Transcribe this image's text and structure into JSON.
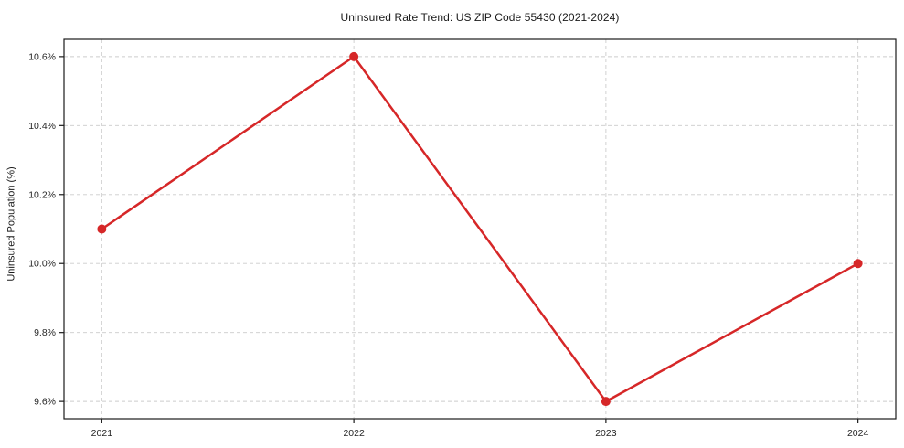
{
  "chart_data": {
    "type": "line",
    "title": "Uninsured Rate Trend: US ZIP Code 55430 (2021-2024)",
    "xlabel": "",
    "ylabel": "Uninsured Population (%)",
    "categories": [
      "2021",
      "2022",
      "2023",
      "2024"
    ],
    "series": [
      {
        "name": "Uninsured rate",
        "values": [
          10.1,
          10.6,
          9.6,
          10.0
        ],
        "color": "#d62728",
        "marker": "circle"
      }
    ],
    "ylim": [
      9.55,
      10.65
    ],
    "x_margin_fraction": 0.05,
    "yticks": [
      9.6,
      9.8,
      10.0,
      10.2,
      10.4,
      10.6
    ],
    "ytick_labels": [
      "9.6%",
      "9.8%",
      "10.0%",
      "10.2%",
      "10.4%",
      "10.6%"
    ],
    "grid": true,
    "grid_style": "dashed",
    "legend": "none"
  },
  "colors": {
    "line": "#d62728",
    "marker": "#d62728",
    "grid": "#cccccc",
    "spine": "#1c1c1c",
    "tick": "#1c1c1c",
    "text": "#262626",
    "background": "#ffffff"
  }
}
